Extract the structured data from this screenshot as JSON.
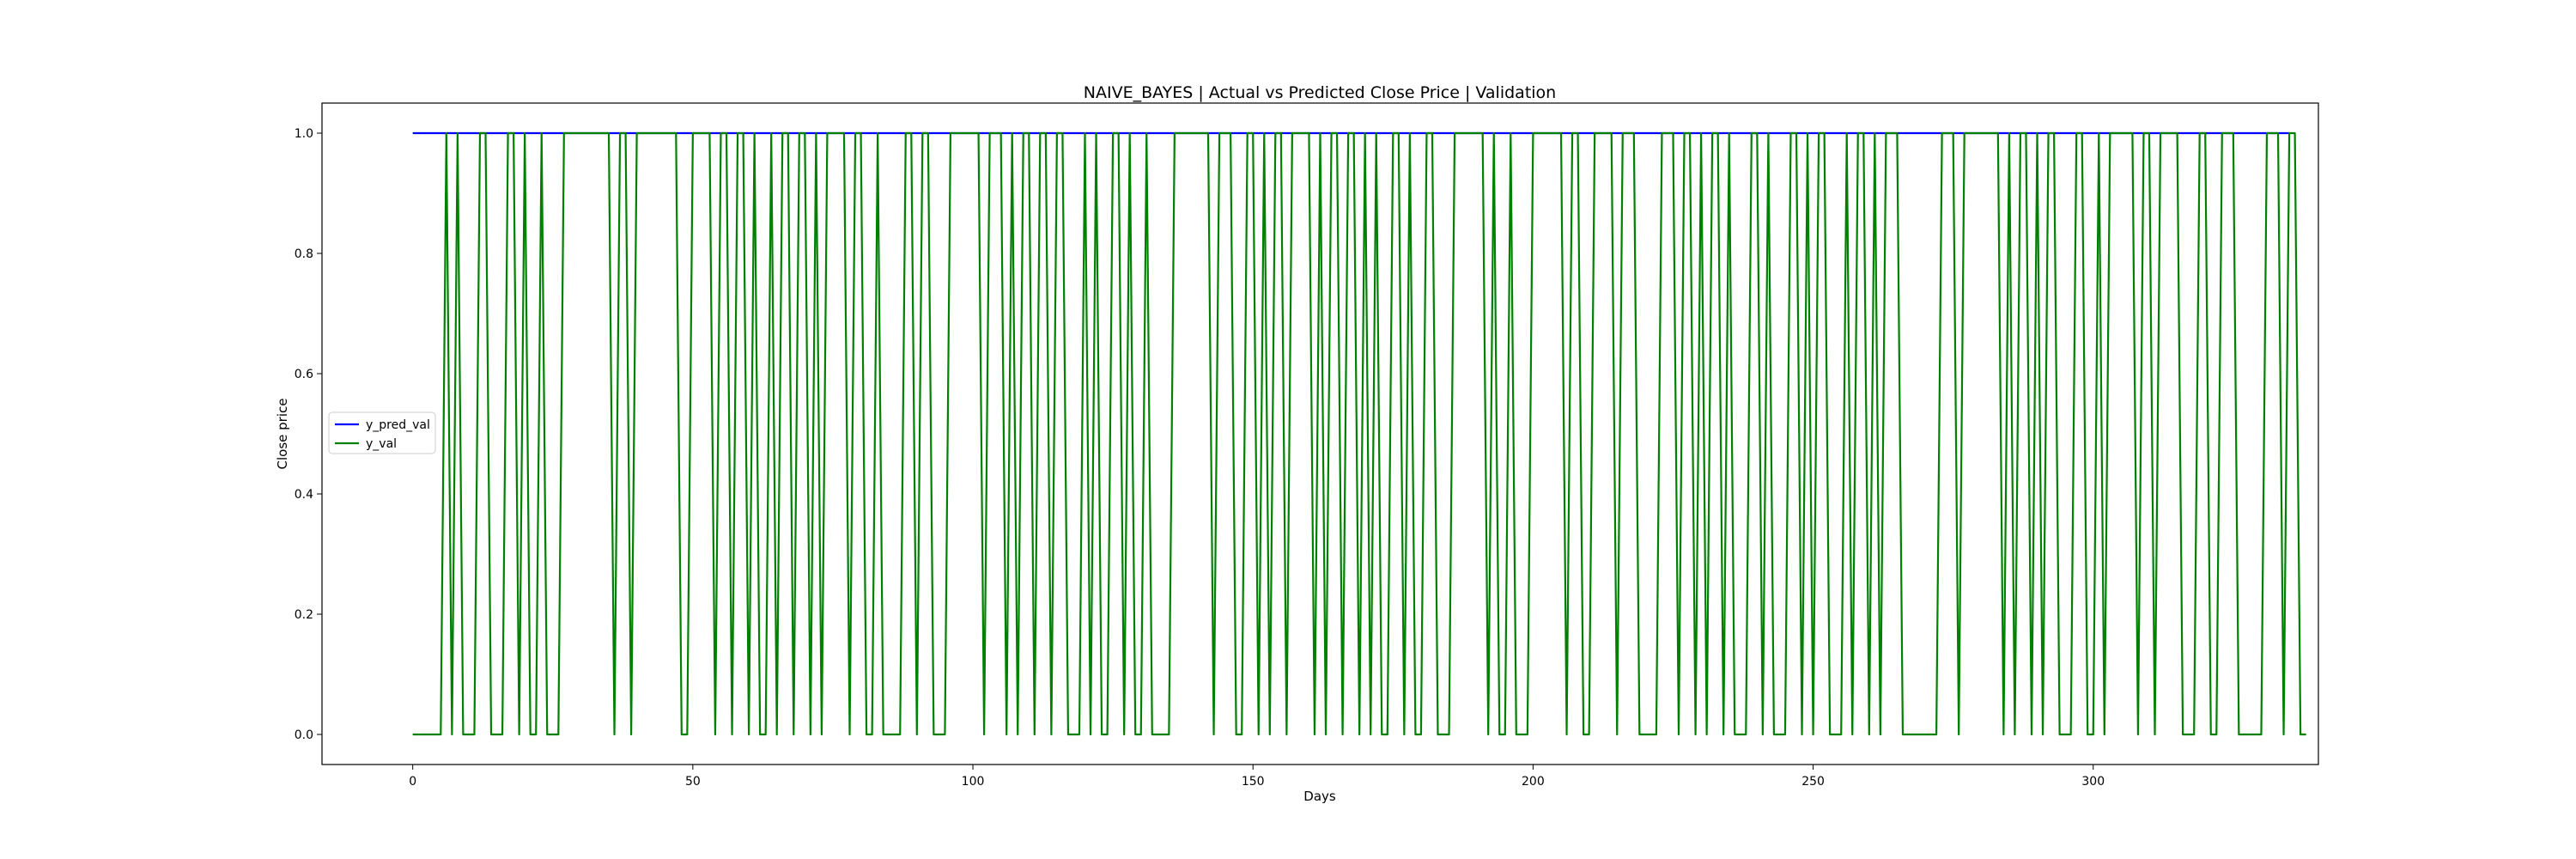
{
  "chart_data": {
    "type": "line",
    "title": "NAIVE_BAYES | Actual vs Predicted Close Price | Validation",
    "xlabel": "Days",
    "ylabel": "Close price",
    "xlim": [
      -16.2,
      340.2
    ],
    "ylim": [
      -0.05,
      1.05
    ],
    "xticks": [
      0,
      50,
      100,
      150,
      200,
      250,
      300
    ],
    "yticks": [
      0.0,
      0.2,
      0.4,
      0.6,
      0.8,
      1.0
    ],
    "xtick_labels": [
      "0",
      "50",
      "100",
      "150",
      "200",
      "250",
      "300"
    ],
    "ytick_labels": [
      "0.0",
      "0.2",
      "0.4",
      "0.6",
      "0.8",
      "1.0"
    ],
    "grid": false,
    "legend": {
      "position": "center-left",
      "entries": [
        "y_pred_val",
        "y_val"
      ]
    },
    "series": [
      {
        "name": "y_pred_val",
        "color": "#0000ff",
        "x_start": 0,
        "values": [
          1,
          1,
          1,
          1,
          1,
          1,
          1,
          1,
          1,
          1,
          1,
          1,
          1,
          1,
          1,
          1,
          1,
          1,
          1,
          1,
          1,
          1,
          1,
          1,
          1,
          1,
          1,
          1,
          1,
          1,
          1,
          1,
          1,
          1,
          1,
          1,
          1,
          1,
          1,
          1,
          1,
          1,
          1,
          1,
          1,
          1,
          1,
          1,
          1,
          1,
          1,
          1,
          1,
          1,
          1,
          1,
          1,
          1,
          1,
          1,
          1,
          1,
          1,
          1,
          1,
          1,
          1,
          1,
          1,
          1,
          1,
          1,
          1,
          1,
          1,
          1,
          1,
          1,
          1,
          1,
          1,
          1,
          1,
          1,
          1,
          1,
          1,
          1,
          1,
          1,
          1,
          1,
          1,
          1,
          1,
          1,
          1,
          1,
          1,
          1,
          1,
          1,
          1,
          1,
          1,
          1,
          1,
          1,
          1,
          1,
          1,
          1,
          1,
          1,
          1,
          1,
          1,
          1,
          1,
          1,
          1,
          1,
          1,
          1,
          1,
          1,
          1,
          1,
          1,
          1,
          1,
          1,
          1,
          1,
          1,
          1,
          1,
          1,
          1,
          1,
          1,
          1,
          1,
          1,
          1,
          1,
          1,
          1,
          1,
          1,
          1,
          1,
          1,
          1,
          1,
          1,
          1,
          1,
          1,
          1,
          1,
          1,
          1,
          1,
          1,
          1,
          1,
          1,
          1,
          1,
          1,
          1,
          1,
          1,
          1,
          1,
          1,
          1,
          1,
          1,
          1,
          1,
          1,
          1,
          1,
          1,
          1,
          1,
          1,
          1,
          1,
          1,
          1,
          1,
          1,
          1,
          1,
          1,
          1,
          1,
          1,
          1,
          1,
          1,
          1,
          1,
          1,
          1,
          1,
          1,
          1,
          1,
          1,
          1,
          1,
          1,
          1,
          1,
          1,
          1,
          1,
          1,
          1,
          1,
          1,
          1,
          1,
          1,
          1,
          1,
          1,
          1,
          1,
          1,
          1,
          1,
          1,
          1,
          1,
          1,
          1,
          1,
          1,
          1,
          1,
          1,
          1,
          1,
          1,
          1,
          1,
          1,
          1,
          1,
          1,
          1,
          1,
          1,
          1,
          1,
          1,
          1,
          1,
          1,
          1,
          1,
          1,
          1,
          1,
          1,
          1,
          1,
          1,
          1,
          1,
          1,
          1,
          1,
          1,
          1,
          1,
          1,
          1,
          1,
          1,
          1,
          1,
          1,
          1,
          1,
          1,
          1,
          1,
          1,
          1,
          1,
          1,
          1,
          1,
          1,
          1,
          1,
          1,
          1,
          1,
          1,
          1,
          1,
          1,
          1,
          1,
          1,
          1,
          1,
          1,
          1,
          1,
          1,
          1,
          1,
          1,
          1,
          1,
          1,
          1,
          1,
          1,
          1,
          1,
          1,
          1,
          1,
          1,
          1,
          1,
          1
        ]
      },
      {
        "name": "y_val",
        "color": "#008000",
        "x_start": 0,
        "values": [
          0,
          0,
          0,
          0,
          0,
          0,
          1,
          0,
          1,
          0,
          0,
          0,
          1,
          1,
          0,
          0,
          0,
          1,
          1,
          0,
          1,
          0,
          0,
          1,
          0,
          0,
          0,
          1,
          1,
          1,
          1,
          1,
          1,
          1,
          1,
          1,
          0,
          1,
          1,
          0,
          1,
          1,
          1,
          1,
          1,
          1,
          1,
          1,
          0,
          0,
          1,
          1,
          1,
          1,
          0,
          1,
          1,
          0,
          1,
          1,
          0,
          1,
          0,
          0,
          1,
          0,
          1,
          1,
          0,
          1,
          1,
          0,
          1,
          0,
          1,
          1,
          1,
          1,
          0,
          1,
          1,
          0,
          0,
          1,
          0,
          0,
          0,
          0,
          1,
          1,
          0,
          1,
          1,
          0,
          0,
          0,
          1,
          1,
          1,
          1,
          1,
          1,
          0,
          1,
          1,
          1,
          0,
          1,
          0,
          1,
          1,
          0,
          1,
          1,
          0,
          1,
          1,
          0,
          0,
          0,
          1,
          0,
          1,
          0,
          0,
          1,
          1,
          0,
          1,
          0,
          0,
          1,
          0,
          0,
          0,
          0,
          1,
          1,
          1,
          1,
          1,
          1,
          1,
          0,
          1,
          1,
          1,
          0,
          0,
          1,
          1,
          0,
          1,
          0,
          1,
          1,
          0,
          1,
          1,
          1,
          1,
          0,
          1,
          0,
          1,
          1,
          0,
          1,
          1,
          0,
          1,
          0,
          1,
          0,
          0,
          1,
          1,
          0,
          1,
          0,
          0,
          1,
          1,
          0,
          0,
          0,
          1,
          1,
          1,
          1,
          1,
          1,
          0,
          1,
          0,
          0,
          1,
          0,
          0,
          0,
          1,
          1,
          1,
          1,
          1,
          1,
          0,
          1,
          1,
          0,
          0,
          1,
          1,
          1,
          1,
          0,
          1,
          1,
          1,
          0,
          0,
          0,
          0,
          1,
          1,
          1,
          0,
          1,
          1,
          0,
          1,
          0,
          1,
          1,
          0,
          1,
          0,
          0,
          0,
          1,
          1,
          0,
          1,
          0,
          0,
          0,
          1,
          1,
          0,
          1,
          0,
          1,
          1,
          0,
          0,
          0,
          1,
          0,
          1,
          1,
          0,
          1,
          0,
          1,
          1,
          1,
          0,
          0,
          0,
          0,
          0,
          0,
          0,
          1,
          1,
          1,
          0,
          1,
          1,
          1,
          1,
          1,
          1,
          1,
          0,
          1,
          0,
          1,
          1,
          0,
          1,
          0,
          1,
          1,
          0,
          0,
          0,
          1,
          1,
          0,
          0,
          1,
          0,
          1,
          1,
          1,
          1,
          1,
          0,
          1,
          1,
          0,
          1,
          1,
          1,
          1,
          0,
          0,
          0,
          1,
          1,
          0,
          0,
          1,
          1,
          1,
          0,
          0,
          0,
          0,
          0,
          1,
          1,
          1,
          0,
          1,
          1,
          0,
          0
        ]
      }
    ]
  }
}
